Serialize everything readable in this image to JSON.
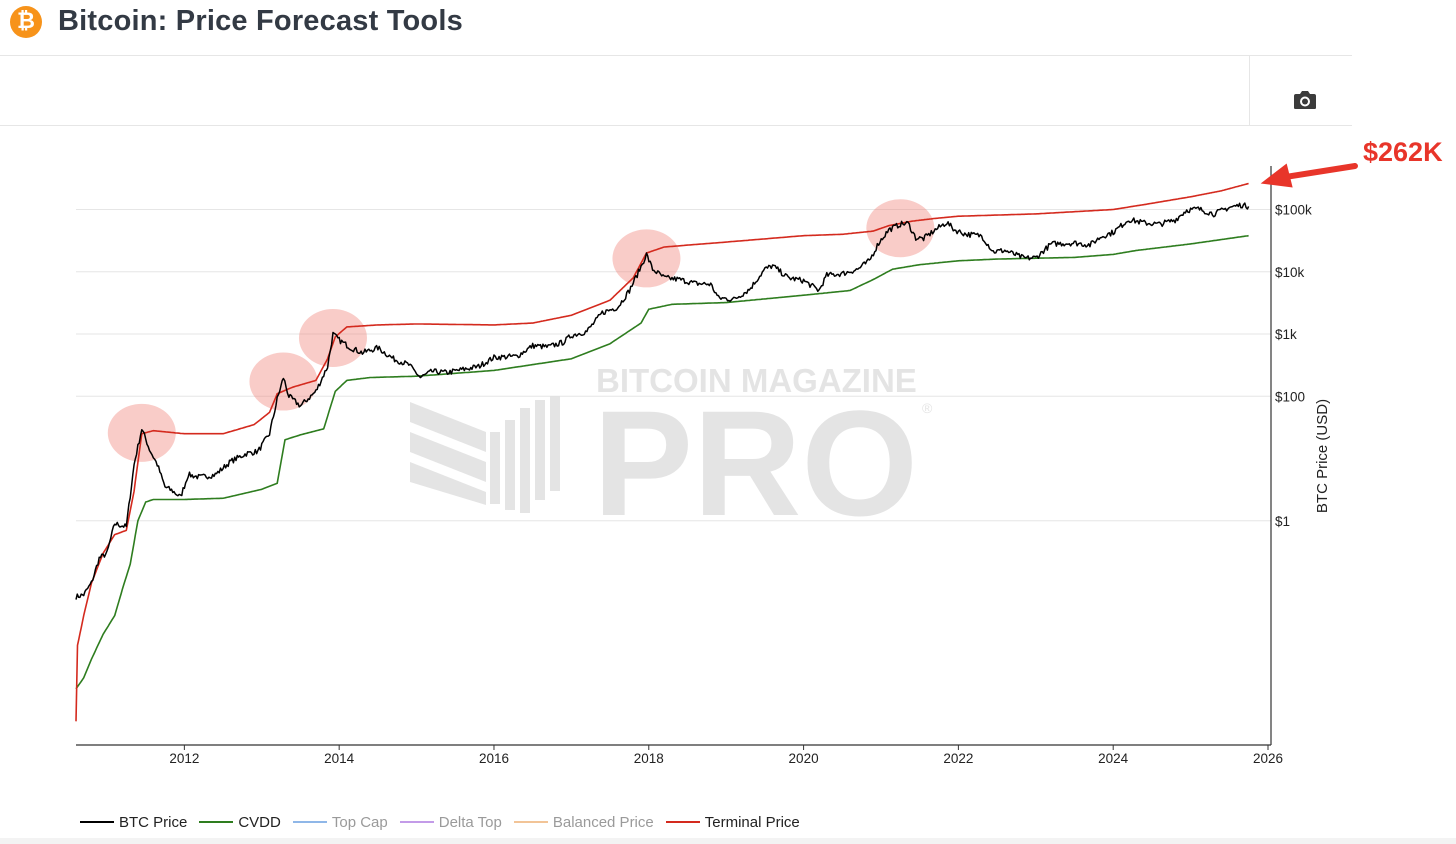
{
  "page": {
    "title": "Bitcoin: Price Forecast Tools",
    "logo_glyph": "₿",
    "camera_icon": "camera-icon"
  },
  "annotation": {
    "label": "$262K",
    "color": "#e8352a"
  },
  "watermark": {
    "line1": "BITCOIN MAGAZINE",
    "line2": "PRO",
    "mark": "®"
  },
  "chart_data": {
    "type": "line",
    "title": "Bitcoin: Price Forecast Tools",
    "xlabel": "",
    "ylabel": "BTC Price (USD)",
    "y_scale": "log",
    "xlim": [
      2010.6,
      2026.0
    ],
    "ylim": [
      0.00025,
      500000
    ],
    "x_ticks": [
      2012,
      2014,
      2016,
      2018,
      2020,
      2022,
      2024,
      2026
    ],
    "x_tick_labels": [
      "2012",
      "2014",
      "2016",
      "2018",
      "2020",
      "2022",
      "2024",
      "2026"
    ],
    "y_ticks": [
      1,
      100,
      1000,
      10000,
      100000
    ],
    "y_tick_labels": [
      "$1",
      "$100",
      "$1k",
      "$10k",
      "$100k"
    ],
    "series": [
      {
        "name": "BTC Price",
        "color": "#000000",
        "visible": true,
        "points": [
          [
            2010.6,
            0.06
          ],
          [
            2010.7,
            0.065
          ],
          [
            2010.8,
            0.1
          ],
          [
            2010.9,
            0.25
          ],
          [
            2011.0,
            0.3
          ],
          [
            2011.1,
            0.9
          ],
          [
            2011.25,
            0.8
          ],
          [
            2011.35,
            8
          ],
          [
            2011.45,
            30
          ],
          [
            2011.55,
            14
          ],
          [
            2011.65,
            8
          ],
          [
            2011.75,
            3.5
          ],
          [
            2011.85,
            3.0
          ],
          [
            2011.95,
            2.4
          ],
          [
            2012.05,
            5.5
          ],
          [
            2012.2,
            5
          ],
          [
            2012.4,
            5.5
          ],
          [
            2012.6,
            9
          ],
          [
            2012.8,
            12
          ],
          [
            2012.95,
            13
          ],
          [
            2013.1,
            25
          ],
          [
            2013.2,
            90
          ],
          [
            2013.28,
            200
          ],
          [
            2013.35,
            100
          ],
          [
            2013.5,
            70
          ],
          [
            2013.7,
            120
          ],
          [
            2013.85,
            300
          ],
          [
            2013.92,
            1000
          ],
          [
            2014.0,
            800
          ],
          [
            2014.15,
            600
          ],
          [
            2014.3,
            500
          ],
          [
            2014.5,
            600
          ],
          [
            2014.7,
            400
          ],
          [
            2014.9,
            320
          ],
          [
            2015.05,
            200
          ],
          [
            2015.2,
            250
          ],
          [
            2015.4,
            240
          ],
          [
            2015.6,
            270
          ],
          [
            2015.8,
            300
          ],
          [
            2016.0,
            420
          ],
          [
            2016.3,
            440
          ],
          [
            2016.5,
            650
          ],
          [
            2016.7,
            620
          ],
          [
            2016.9,
            740
          ],
          [
            2017.0,
            950
          ],
          [
            2017.2,
            1100
          ],
          [
            2017.4,
            2200
          ],
          [
            2017.6,
            2700
          ],
          [
            2017.75,
            5000
          ],
          [
            2017.9,
            12000
          ],
          [
            2017.97,
            19000
          ],
          [
            2018.05,
            11000
          ],
          [
            2018.2,
            8000
          ],
          [
            2018.4,
            7500
          ],
          [
            2018.6,
            6500
          ],
          [
            2018.8,
            6300
          ],
          [
            2018.9,
            3800
          ],
          [
            2019.1,
            3600
          ],
          [
            2019.3,
            5200
          ],
          [
            2019.5,
            11000
          ],
          [
            2019.6,
            12500
          ],
          [
            2019.8,
            8000
          ],
          [
            2020.0,
            7200
          ],
          [
            2020.2,
            5000
          ],
          [
            2020.3,
            8800
          ],
          [
            2020.5,
            9300
          ],
          [
            2020.7,
            11000
          ],
          [
            2020.85,
            15000
          ],
          [
            2020.97,
            29000
          ],
          [
            2021.1,
            47000
          ],
          [
            2021.25,
            58000
          ],
          [
            2021.35,
            60000
          ],
          [
            2021.45,
            35000
          ],
          [
            2021.55,
            34000
          ],
          [
            2021.7,
            47000
          ],
          [
            2021.85,
            62000
          ],
          [
            2021.95,
            47000
          ],
          [
            2022.1,
            40000
          ],
          [
            2022.3,
            38000
          ],
          [
            2022.45,
            21000
          ],
          [
            2022.6,
            22000
          ],
          [
            2022.85,
            16500
          ],
          [
            2023.0,
            16800
          ],
          [
            2023.2,
            28000
          ],
          [
            2023.5,
            29000
          ],
          [
            2023.7,
            27000
          ],
          [
            2023.85,
            37000
          ],
          [
            2024.0,
            43000
          ],
          [
            2024.2,
            69000
          ],
          [
            2024.4,
            61000
          ],
          [
            2024.6,
            58000
          ],
          [
            2024.8,
            68000
          ],
          [
            2024.95,
            98000
          ],
          [
            2025.1,
            102000
          ],
          [
            2025.3,
            85000
          ],
          [
            2025.5,
            108000
          ],
          [
            2025.65,
            118000
          ],
          [
            2025.75,
            112000
          ]
        ]
      },
      {
        "name": "CVDD",
        "color": "#2e7d1f",
        "visible": true,
        "points": [
          [
            2010.6,
            0.002
          ],
          [
            2010.7,
            0.003
          ],
          [
            2010.8,
            0.006
          ],
          [
            2010.95,
            0.015
          ],
          [
            2011.1,
            0.03
          ],
          [
            2011.2,
            0.08
          ],
          [
            2011.3,
            0.2
          ],
          [
            2011.4,
            1
          ],
          [
            2011.5,
            2
          ],
          [
            2011.6,
            2.2
          ],
          [
            2012.0,
            2.2
          ],
          [
            2012.5,
            2.3
          ],
          [
            2013.0,
            3.2
          ],
          [
            2013.2,
            4
          ],
          [
            2013.3,
            20
          ],
          [
            2013.5,
            24
          ],
          [
            2013.8,
            30
          ],
          [
            2013.95,
            120
          ],
          [
            2014.1,
            180
          ],
          [
            2014.4,
            200
          ],
          [
            2015.0,
            210
          ],
          [
            2016.0,
            260
          ],
          [
            2017.0,
            400
          ],
          [
            2017.5,
            700
          ],
          [
            2017.9,
            1500
          ],
          [
            2018.0,
            2500
          ],
          [
            2018.3,
            3000
          ],
          [
            2019.0,
            3200
          ],
          [
            2020.0,
            4200
          ],
          [
            2020.6,
            5000
          ],
          [
            2020.9,
            7500
          ],
          [
            2021.15,
            11000
          ],
          [
            2021.5,
            13000
          ],
          [
            2022.0,
            15000
          ],
          [
            2022.5,
            16000
          ],
          [
            2023.0,
            16500
          ],
          [
            2023.5,
            17000
          ],
          [
            2024.0,
            19000
          ],
          [
            2024.3,
            22000
          ],
          [
            2025.0,
            28000
          ],
          [
            2025.75,
            38000
          ]
        ]
      },
      {
        "name": "Top Cap",
        "color": "#8fb7e8",
        "visible": false,
        "points": []
      },
      {
        "name": "Delta Top",
        "color": "#c39be8",
        "visible": false,
        "points": []
      },
      {
        "name": "Balanced Price",
        "color": "#f2c497",
        "visible": false,
        "points": []
      },
      {
        "name": "Terminal Price",
        "color": "#d42a1e",
        "visible": true,
        "points": [
          [
            2010.6,
            0.0006
          ],
          [
            2010.62,
            0.01
          ],
          [
            2010.7,
            0.03
          ],
          [
            2010.8,
            0.1
          ],
          [
            2010.95,
            0.3
          ],
          [
            2011.1,
            0.6
          ],
          [
            2011.25,
            0.7
          ],
          [
            2011.35,
            3
          ],
          [
            2011.45,
            25
          ],
          [
            2011.6,
            28
          ],
          [
            2012.0,
            25
          ],
          [
            2012.5,
            25
          ],
          [
            2012.9,
            35
          ],
          [
            2013.1,
            55
          ],
          [
            2013.2,
            110
          ],
          [
            2013.4,
            140
          ],
          [
            2013.7,
            180
          ],
          [
            2013.85,
            400
          ],
          [
            2013.95,
            900
          ],
          [
            2014.1,
            1300
          ],
          [
            2014.5,
            1400
          ],
          [
            2015.0,
            1450
          ],
          [
            2016.0,
            1400
          ],
          [
            2016.5,
            1500
          ],
          [
            2017.0,
            2000
          ],
          [
            2017.5,
            3500
          ],
          [
            2017.8,
            8000
          ],
          [
            2017.97,
            20000
          ],
          [
            2018.2,
            25000
          ],
          [
            2019.0,
            30000
          ],
          [
            2020.0,
            38000
          ],
          [
            2020.5,
            40000
          ],
          [
            2020.9,
            45000
          ],
          [
            2021.1,
            55000
          ],
          [
            2021.4,
            65000
          ],
          [
            2021.7,
            72000
          ],
          [
            2022.0,
            78000
          ],
          [
            2023.0,
            85000
          ],
          [
            2024.0,
            100000
          ],
          [
            2024.4,
            120000
          ],
          [
            2025.0,
            160000
          ],
          [
            2025.4,
            200000
          ],
          [
            2025.75,
            262000
          ]
        ]
      }
    ],
    "annotations": [
      {
        "text": "$262K",
        "target_series": "Terminal Price",
        "target_x": 2025.75,
        "target_y": 262000
      }
    ],
    "highlight_circles_at_x": [
      2011.45,
      2013.28,
      2013.92,
      2017.97,
      2021.25
    ],
    "legend": {
      "placement": "bottom-left"
    },
    "grid": {
      "y": true,
      "x": false
    }
  }
}
